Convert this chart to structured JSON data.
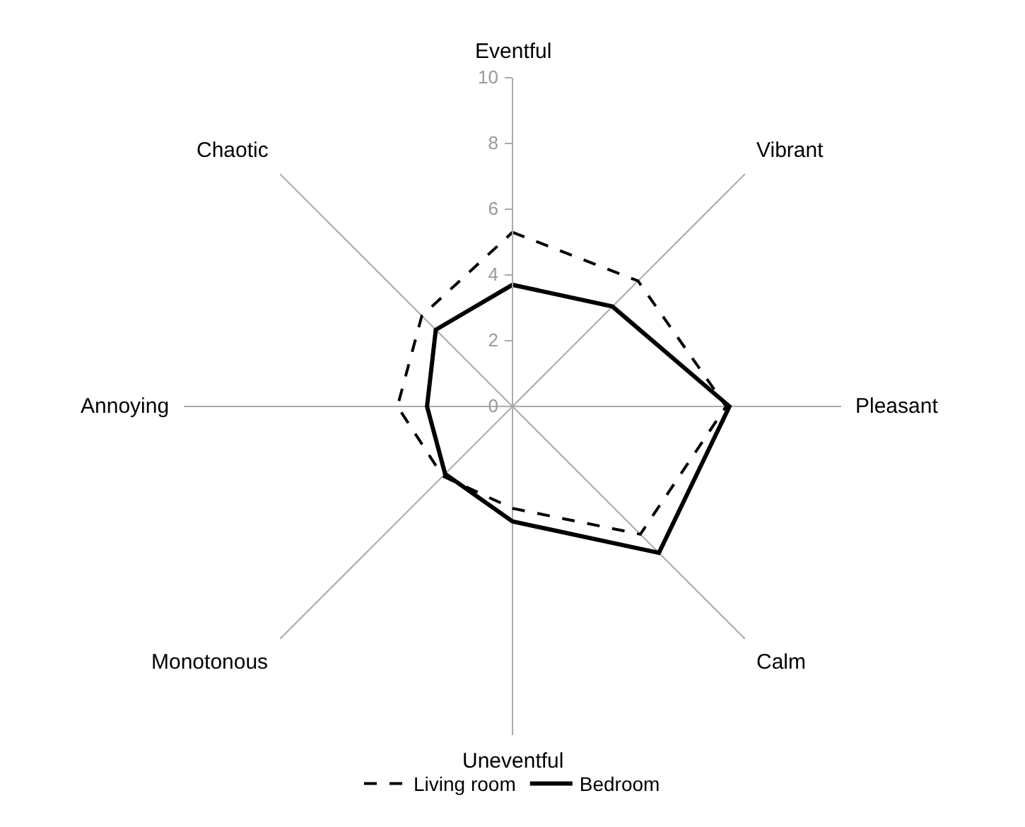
{
  "chart_data": {
    "type": "radar",
    "categories": [
      "Eventful",
      "Vibrant",
      "Pleasant",
      "Calm",
      "Uneventful",
      "Monotonous",
      "Annoying",
      "Chaotic"
    ],
    "series": [
      {
        "name": "Living room",
        "color": "#000000",
        "line_style": "dashed",
        "values": [
          5.3,
          5.4,
          6.5,
          5.5,
          3.1,
          3.0,
          3.5,
          3.9
        ]
      },
      {
        "name": "Bedroom",
        "color": "#000000",
        "line_style": "solid",
        "values": [
          3.7,
          4.3,
          6.6,
          6.3,
          3.5,
          2.9,
          2.6,
          3.3
        ]
      }
    ],
    "ylim": [
      0,
      10
    ],
    "yticks": [
      0,
      2,
      4,
      6,
      8,
      10
    ],
    "grid": "x",
    "legend": "bottom",
    "marker": "none"
  }
}
